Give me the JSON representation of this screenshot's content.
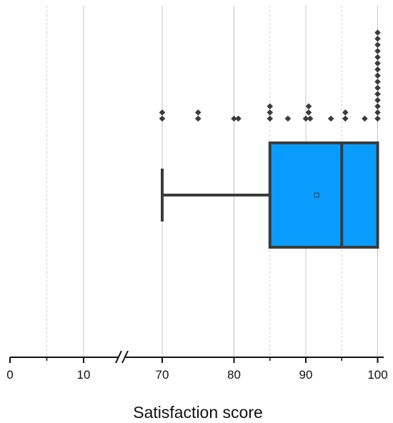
{
  "chart_data": {
    "type": "box",
    "orientation": "horizontal",
    "xlabel": "Satisfaction score",
    "ylabel": "",
    "title": "",
    "axis_break": "between 10 and 70",
    "xlim_segments": [
      [
        0,
        15
      ],
      [
        65,
        101
      ]
    ],
    "ticks": [
      0,
      10,
      70,
      80,
      90,
      100
    ],
    "tick_labels": [
      "0",
      "10",
      "70",
      "80",
      "90",
      "100"
    ],
    "grid": {
      "major": [
        10,
        70,
        80,
        90,
        100
      ],
      "minor_dashed": [
        5,
        85,
        95
      ]
    },
    "box": {
      "q1": 85,
      "median": 95,
      "q3": 100,
      "mean": 91.5,
      "whisker_low": 70,
      "whisker_high": 100,
      "color": "#0a9dff",
      "edge_color": "#3b3b3b"
    },
    "points": [
      {
        "x": 70,
        "y": 0
      },
      {
        "x": 70,
        "y": 1
      },
      {
        "x": 75,
        "y": 0
      },
      {
        "x": 75,
        "y": 1
      },
      {
        "x": 80,
        "y": 0
      },
      {
        "x": 80.6,
        "y": 0
      },
      {
        "x": 85,
        "y": 0
      },
      {
        "x": 85,
        "y": 1
      },
      {
        "x": 85,
        "y": 2
      },
      {
        "x": 87.5,
        "y": 0
      },
      {
        "x": 90,
        "y": 0
      },
      {
        "x": 90.4,
        "y": 1
      },
      {
        "x": 90.4,
        "y": 2
      },
      {
        "x": 90.6,
        "y": 0
      },
      {
        "x": 93.5,
        "y": 0
      },
      {
        "x": 95.5,
        "y": 0
      },
      {
        "x": 95.5,
        "y": 1
      },
      {
        "x": 98.2,
        "y": 0
      },
      {
        "x": 100,
        "y": 0
      },
      {
        "x": 100,
        "y": 1
      },
      {
        "x": 100,
        "y": 2
      },
      {
        "x": 100,
        "y": 3
      },
      {
        "x": 100,
        "y": 4
      },
      {
        "x": 100,
        "y": 5
      },
      {
        "x": 100,
        "y": 6
      },
      {
        "x": 100,
        "y": 7
      },
      {
        "x": 100,
        "y": 8
      },
      {
        "x": 100,
        "y": 9
      },
      {
        "x": 100,
        "y": 10
      },
      {
        "x": 100,
        "y": 11
      },
      {
        "x": 100,
        "y": 12
      },
      {
        "x": 100,
        "y": 13
      },
      {
        "x": 100,
        "y": 14
      }
    ],
    "point_color": "#3b3b3b"
  }
}
